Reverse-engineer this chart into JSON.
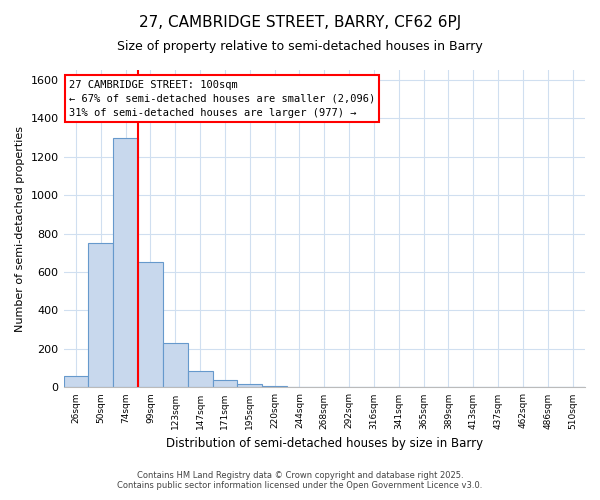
{
  "title_line1": "27, CAMBRIDGE STREET, BARRY, CF62 6PJ",
  "title_line2": "Size of property relative to semi-detached houses in Barry",
  "xlabel": "Distribution of semi-detached houses by size in Barry",
  "ylabel": "Number of semi-detached properties",
  "categories": [
    "26sqm",
    "50sqm",
    "74sqm",
    "99sqm",
    "123sqm",
    "147sqm",
    "171sqm",
    "195sqm",
    "220sqm",
    "244sqm",
    "268sqm",
    "292sqm",
    "316sqm",
    "341sqm",
    "365sqm",
    "389sqm",
    "413sqm",
    "437sqm",
    "462sqm",
    "486sqm",
    "510sqm"
  ],
  "values": [
    62,
    752,
    1295,
    650,
    230,
    85,
    40,
    20,
    8,
    3,
    0,
    0,
    0,
    0,
    0,
    0,
    0,
    0,
    0,
    0,
    0
  ],
  "bar_color": "#c8d8ed",
  "bar_edge_color": "#6699cc",
  "red_line_index": 2,
  "annotation_title": "27 CAMBRIDGE STREET: 100sqm",
  "annotation_line1": "← 67% of semi-detached houses are smaller (2,096)",
  "annotation_line2": "31% of semi-detached houses are larger (977) →",
  "ylim_max": 1650,
  "yticks": [
    0,
    200,
    400,
    600,
    800,
    1000,
    1200,
    1400,
    1600
  ],
  "footer_line1": "Contains HM Land Registry data © Crown copyright and database right 2025.",
  "footer_line2": "Contains public sector information licensed under the Open Government Licence v3.0.",
  "bg_color": "#ffffff",
  "grid_color": "#d0dff0"
}
